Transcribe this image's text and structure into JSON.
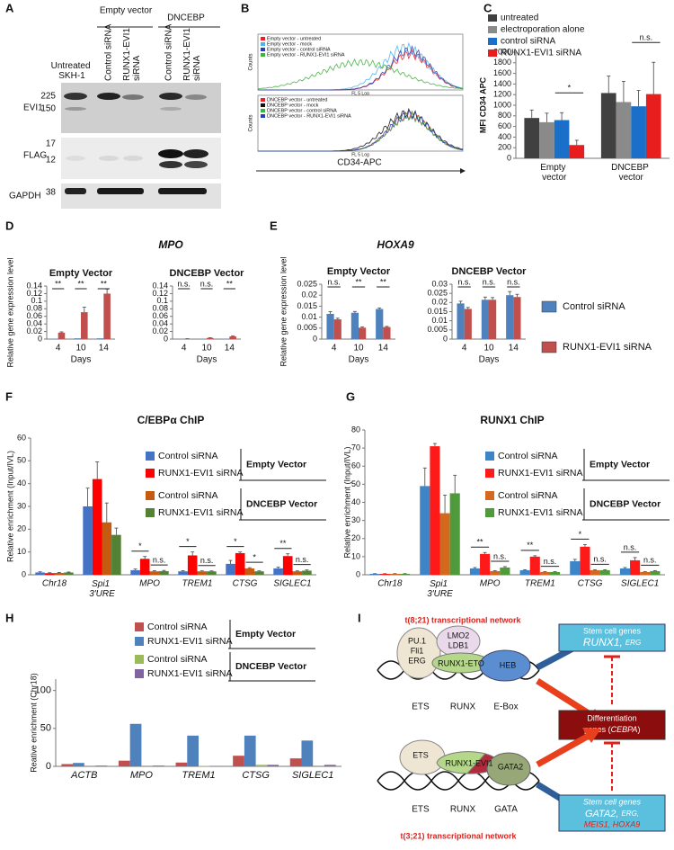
{
  "panels": [
    "A",
    "B",
    "C",
    "D",
    "E",
    "F",
    "G",
    "H",
    "I"
  ],
  "blot": {
    "groups": [
      "Empty vector",
      "DNCEBP"
    ],
    "lanes": [
      "Untreated SKH-1",
      "Control siRNA",
      "RUNX1-EVI1 siRNA",
      "Control siRNA",
      "RUNX1-EVI1 siRNA"
    ],
    "rows": [
      "EVI1",
      "FLAG",
      "GAPDH"
    ],
    "markers": [
      "225",
      "150",
      "17",
      "12",
      "38"
    ]
  },
  "flow": {
    "top_legend": [
      {
        "name": "Empty vector - untreated",
        "color": "#e8202a"
      },
      {
        "name": "Empty vector - mock",
        "color": "#4fb3e8"
      },
      {
        "name": "Empty vector - control siRNA",
        "color": "#2b3fb0"
      },
      {
        "name": "Empty vector - RUNX1-EVI1 siRNA",
        "color": "#3fb23f"
      }
    ],
    "bottom_legend": [
      {
        "name": "DNCEBP vector - untreated",
        "color": "#e8202a"
      },
      {
        "name": "DNCEBP vector - mock",
        "color": "#111111"
      },
      {
        "name": "DNCEBP vector - control siRNA",
        "color": "#3fb23f"
      },
      {
        "name": "DNCEBP vector - RUNX1-EVI1 siRNA",
        "color": "#2b3fb0"
      }
    ],
    "ylabel": "Counts",
    "xlabel": "FL 5 Log",
    "axis_title": "CD34-APC"
  },
  "chart_data": [
    {
      "type": "bar",
      "ylabel": "MFI CD34 APC",
      "categories": [
        "Empty vector",
        "DNCEBP vector"
      ],
      "series": [
        {
          "name": "untreated",
          "color": "#404040",
          "values": [
            760,
            1230
          ],
          "errors": [
            150,
            320
          ]
        },
        {
          "name": "electroporation alone",
          "color": "#8a8a8a",
          "values": [
            680,
            1060
          ],
          "errors": [
            170,
            390
          ]
        },
        {
          "name": "control siRNA",
          "color": "#1a6fc8",
          "values": [
            720,
            980
          ],
          "errors": [
            140,
            300
          ]
        },
        {
          "name": "RUNX1-EVI1 siRNA",
          "color": "#e81d1d",
          "values": [
            250,
            1210
          ],
          "errors": [
            90,
            600
          ]
        }
      ],
      "ylim": [
        0,
        2000
      ],
      "yticks": [
        0,
        200,
        400,
        600,
        800,
        1000,
        1200,
        1400,
        1600,
        1800,
        2000
      ],
      "significance": [
        "*",
        "n.s."
      ]
    },
    {
      "type": "bar",
      "title": "MPO",
      "subtitle": "Empty Vector",
      "ylabel": "Relative gene expression level",
      "xlabel": "Days",
      "categories": [
        "4",
        "10",
        "14"
      ],
      "series": [
        {
          "name": "Control siRNA",
          "color": "#4f81bd",
          "values": [
            0.001,
            0.002,
            0.002
          ]
        },
        {
          "name": "RUNX1-EVI1 siRNA",
          "color": "#c0504d",
          "values": [
            0.017,
            0.071,
            0.12
          ],
          "errors": [
            0.002,
            0.013,
            0.012
          ]
        }
      ],
      "ylim": [
        0,
        0.14
      ],
      "yticks": [
        0,
        0.02,
        0.04,
        0.06,
        0.08,
        0.1,
        0.12,
        0.14
      ],
      "significance": [
        "**",
        "**",
        "**"
      ]
    },
    {
      "type": "bar",
      "subtitle": "DNCEBP Vector",
      "xlabel": "Days",
      "categories": [
        "4",
        "10",
        "14"
      ],
      "series": [
        {
          "name": "Control siRNA",
          "color": "#4f81bd",
          "values": [
            0.0005,
            0.0005,
            0.0005
          ]
        },
        {
          "name": "RUNX1-EVI1 siRNA",
          "color": "#c0504d",
          "values": [
            0.0008,
            0.003,
            0.007
          ],
          "errors": [
            0.0002,
            0.0005,
            0.001
          ]
        }
      ],
      "ylim": [
        0,
        0.14
      ],
      "yticks": [
        0,
        0.02,
        0.04,
        0.06,
        0.08,
        0.1,
        0.12,
        0.14
      ],
      "significance": [
        "n.s.",
        "n.s.",
        "**"
      ]
    },
    {
      "type": "bar",
      "title": "HOXA9",
      "subtitle": "Empty Vector",
      "ylabel": "Relative gene expression level",
      "xlabel": "Days",
      "categories": [
        "4",
        "10",
        "14"
      ],
      "series": [
        {
          "name": "Control siRNA",
          "color": "#4f81bd",
          "values": [
            0.0115,
            0.012,
            0.0137
          ],
          "errors": [
            0.001,
            0.0006,
            0.0005
          ]
        },
        {
          "name": "RUNX1-EVI1 siRNA",
          "color": "#c0504d",
          "values": [
            0.009,
            0.0052,
            0.0055
          ],
          "errors": [
            0.0005,
            0.0004,
            0.0003
          ]
        }
      ],
      "ylim": [
        0,
        0.025
      ],
      "yticks": [
        0,
        0.005,
        0.01,
        0.015,
        0.02,
        0.025
      ],
      "significance": [
        "n.s.",
        "**",
        "**"
      ]
    },
    {
      "type": "bar",
      "subtitle": "DNCEBP Vector",
      "xlabel": "Days",
      "categories": [
        "4",
        "10",
        "14"
      ],
      "series": [
        {
          "name": "Control siRNA",
          "color": "#4f81bd",
          "values": [
            0.0195,
            0.0215,
            0.024
          ],
          "errors": [
            0.0012,
            0.0015,
            0.002
          ]
        },
        {
          "name": "RUNX1-EVI1 siRNA",
          "color": "#c0504d",
          "values": [
            0.0165,
            0.0215,
            0.023
          ],
          "errors": [
            0.0008,
            0.0012,
            0.0015
          ]
        }
      ],
      "ylim": [
        0,
        0.03
      ],
      "yticks": [
        0,
        0.005,
        0.01,
        0.015,
        0.02,
        0.025,
        0.03
      ],
      "significance": [
        "n.s.",
        "n.s.",
        "n.s."
      ]
    },
    {
      "type": "bar",
      "title": "C/EBPα ChIP",
      "ylabel": "Relative enrichment (Input/IVL)",
      "categories": [
        "Chr18",
        "Spi1 3'URE",
        "MPO",
        "TREM1",
        "CTSG",
        "SIGLEC1"
      ],
      "series": [
        {
          "name": "Control siRNA",
          "color": "#4472c4",
          "values": [
            1,
            30,
            2,
            1.5,
            4.8,
            2.8
          ],
          "errors": [
            0.3,
            8,
            0.5,
            0.3,
            1.5,
            0.5
          ]
        },
        {
          "name": "RUNX1-EVI1 siRNA",
          "color": "#ff0000",
          "values": [
            0.7,
            42,
            7,
            8.5,
            9.5,
            8.2
          ],
          "errors": [
            0.2,
            7.5,
            1,
            1.5,
            0.5,
            1
          ]
        },
        {
          "name": "Control siRNA",
          "color": "#c55a11",
          "values": [
            0.8,
            23,
            1.5,
            1.5,
            2.8,
            1.5
          ],
          "errors": [
            0.2,
            8.5,
            0.3,
            0.2,
            0.3,
            0.2
          ]
        },
        {
          "name": "RUNX1-EVI1 siRNA",
          "color": "#548235",
          "values": [
            1,
            17.5,
            1.6,
            1.5,
            1.5,
            1.8
          ],
          "errors": [
            0.2,
            3,
            0.3,
            0.2,
            0.2,
            0.3
          ]
        }
      ],
      "legend_groups": [
        "Empty Vector",
        "DNCEBP Vector"
      ],
      "ylim": [
        0,
        60
      ],
      "yticks": [
        0,
        10,
        20,
        30,
        40,
        50,
        60
      ],
      "significance": [
        null,
        null,
        [
          "*",
          "n.s."
        ],
        [
          "*",
          "n.s."
        ],
        [
          "*",
          "*"
        ],
        [
          "**",
          "n.s."
        ]
      ]
    },
    {
      "type": "bar",
      "title": "RUNX1 ChIP",
      "ylabel": "Relative enrichment (Input/IVL)",
      "categories": [
        "Chr18",
        "Spi1 3'URE",
        "MPO",
        "TREM1",
        "CTSG",
        "SIGLEC1"
      ],
      "series": [
        {
          "name": "Control siRNA",
          "color": "#3d85c6",
          "values": [
            0.5,
            49,
            3.5,
            2.5,
            7.5,
            3.5
          ],
          "errors": [
            0.1,
            10,
            0.5,
            0.3,
            1,
            0.5
          ]
        },
        {
          "name": "RUNX1-EVI1 siRNA",
          "color": "#ff1a1a",
          "values": [
            0.5,
            71,
            11.5,
            10,
            15.5,
            8
          ],
          "errors": [
            0.1,
            1.5,
            0.8,
            0.5,
            1.2,
            1.5
          ]
        },
        {
          "name": "Control siRNA",
          "color": "#d2691e",
          "values": [
            0.5,
            34,
            2,
            1.5,
            2.5,
            1.5
          ],
          "errors": [
            0.1,
            10,
            0.3,
            0.2,
            0.3,
            0.2
          ]
        },
        {
          "name": "RUNX1-EVI1 siRNA",
          "color": "#4f9a3a",
          "values": [
            0.5,
            45,
            4,
            1.5,
            2.5,
            2
          ],
          "errors": [
            0.1,
            10,
            0.5,
            0.2,
            0.3,
            0.3
          ]
        }
      ],
      "legend_groups": [
        "Empty Vector",
        "DNCEBP Vector"
      ],
      "ylim": [
        0,
        80
      ],
      "yticks": [
        0,
        10,
        20,
        30,
        40,
        50,
        60,
        70,
        80
      ],
      "significance": [
        null,
        null,
        [
          "**",
          "n.s."
        ],
        [
          "**",
          "n.s."
        ],
        [
          "*",
          "n.s."
        ],
        [
          "n.s.",
          "n.s."
        ]
      ]
    },
    {
      "type": "bar",
      "ylabel": "Reative enrichment (Chr18)",
      "categories": [
        "ACTB",
        "MPO",
        "TREM1",
        "CTSG",
        "SIGLEC1"
      ],
      "series": [
        {
          "name": "Control siRNA",
          "color": "#c0504d",
          "values": [
            3,
            7.5,
            5,
            14,
            10.5
          ]
        },
        {
          "name": "RUNX1-EVI1 siRNA",
          "color": "#4f81bd",
          "values": [
            4.5,
            56,
            40.5,
            40.5,
            34
          ]
        },
        {
          "name": "Control siRNA",
          "color": "#9bbb59",
          "values": [
            1,
            1,
            0.5,
            2,
            1
          ]
        },
        {
          "name": "RUNX1-EVI1 siRNA",
          "color": "#8064a2",
          "values": [
            1,
            1,
            0.5,
            2,
            2
          ]
        }
      ],
      "legend_groups": [
        "Empty Vector",
        "DNCEBP Vector"
      ],
      "ylim": [
        0,
        115
      ],
      "yticks": [
        0,
        50,
        100
      ]
    }
  ],
  "diagram": {
    "top_title": "t(8;21) transcriptional network",
    "top_factors": [
      "PU.1",
      "Fli1",
      "ERG",
      "LMO2",
      "LDB1",
      "RUNX1-ETO",
      "HEB"
    ],
    "top_sites": [
      "ETS",
      "RUNX",
      "E-Box"
    ],
    "stem_top": [
      "Stem cell genes",
      "RUNX1,",
      "ERG"
    ],
    "diff": [
      "Differentiation",
      "genes (",
      "CEBPA",
      ")"
    ],
    "bottom_factors": [
      "ETS",
      "RUNX1-EVI1",
      "GATA2"
    ],
    "bottom_sites": [
      "ETS",
      "RUNX",
      "GATA"
    ],
    "stem_bottom": [
      "Stem cell genes",
      "GATA2,",
      "ERG,",
      "MEIS1, HOXA9"
    ],
    "bottom_title": "t(3;21) transcriptional network"
  }
}
